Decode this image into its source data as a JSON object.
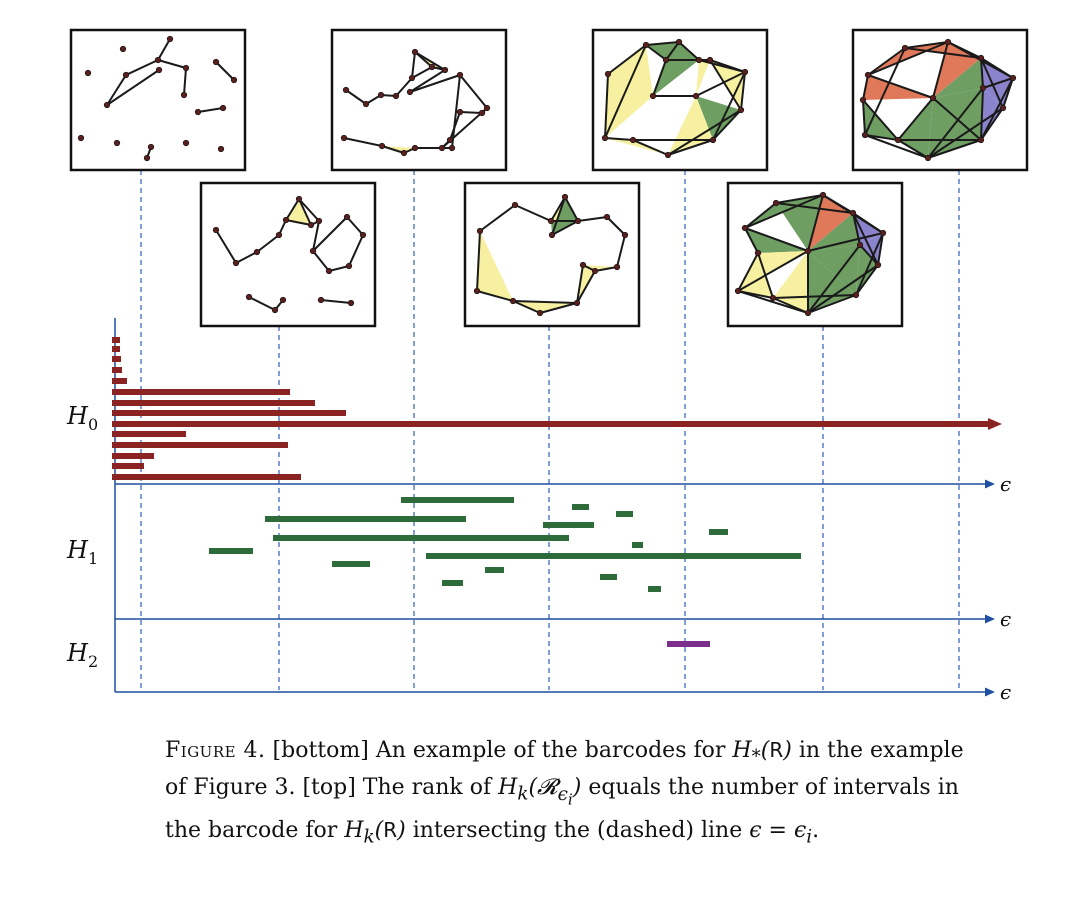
{
  "barcode": {
    "labels": [
      {
        "id": "H0",
        "letter": "H",
        "sub": "0"
      },
      {
        "id": "H1",
        "letter": "H",
        "sub": "1"
      },
      {
        "id": "H2",
        "letter": "H",
        "sub": "2"
      }
    ],
    "axis_label": "ϵ",
    "colors": {
      "H0": "#8b2323",
      "H1": "#2e6b3a",
      "H2": "#7b2e8c",
      "axis": "#1f4fa0",
      "dashed": "#2f5fc0"
    }
  },
  "caption": {
    "label": "Figure 4.",
    "part1": " [bottom] An example of the barcodes for ",
    "part2": " in the example of Figure 3. [top] The rank of ",
    "part3": " equals the number of intervals in the barcode for ",
    "part4": " intersecting the (dashed) line ",
    "part5": "."
  }
}
